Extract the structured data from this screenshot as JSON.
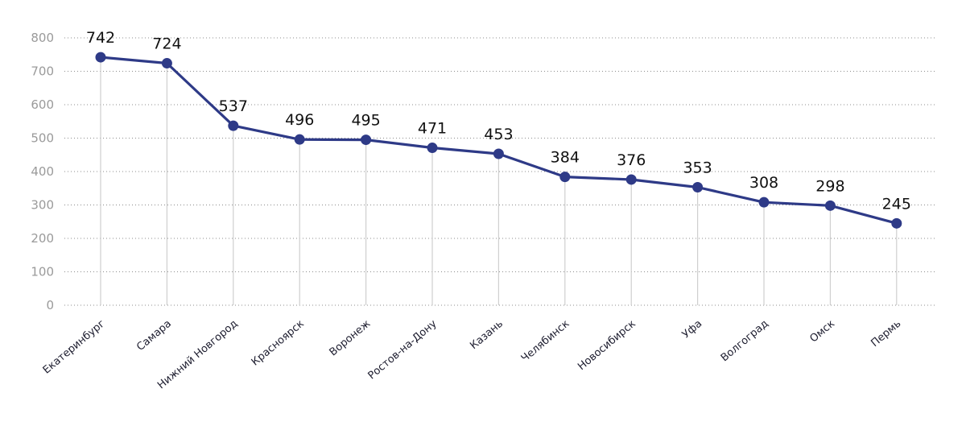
{
  "chart_data": {
    "type": "line",
    "categories": [
      "Екатеринбург",
      "Самара",
      "Нижний Новгород",
      "Красноярск",
      "Воронеж",
      "Ростов-на-Дону",
      "Казань",
      "Челябинск",
      "Новосибирск",
      "Уфа",
      "Волгоград",
      "Омск",
      "Пермь"
    ],
    "values": [
      742,
      724,
      537,
      496,
      495,
      471,
      453,
      384,
      376,
      353,
      308,
      298,
      245
    ],
    "data_labels": [
      "742",
      "724",
      "537",
      "496",
      "495",
      "471",
      "453",
      "384",
      "376",
      "353",
      "308",
      "298",
      "245"
    ],
    "ylim": [
      0,
      800
    ],
    "yticks": [
      "0",
      "100",
      "200",
      "300",
      "400",
      "500",
      "600",
      "700",
      "800"
    ],
    "grid": "horizontal-dotted",
    "legend": "none",
    "colors": {
      "series": "#2e3a87",
      "grid": "#8c8c8c",
      "drop_lines": "#cfcfcf",
      "tick_text": "#9a9a9a"
    }
  }
}
